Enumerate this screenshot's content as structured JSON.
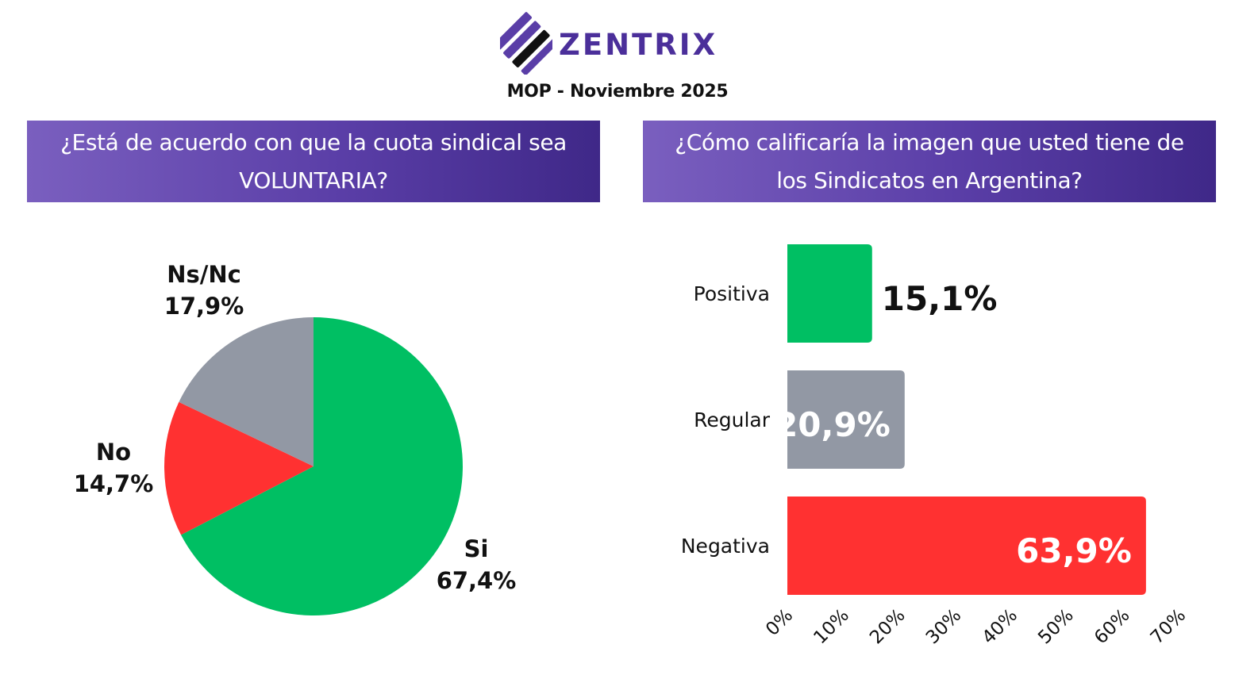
{
  "header": {
    "brand": "ZENTRIX",
    "subtitle": "MOP - Noviembre 2025"
  },
  "colors": {
    "brand_purple": "#4b2f9a",
    "green": "#00bf63",
    "gray": "#9298a4",
    "red": "#ff3131"
  },
  "chart_data": [
    {
      "type": "pie",
      "title": "¿Está de acuerdo con que la cuota sindical sea VOLUNTARIA?",
      "slices": [
        {
          "label": "Si",
          "value": 67.4,
          "value_label": "67,4%",
          "color": "#00bf63"
        },
        {
          "label": "No",
          "value": 14.7,
          "value_label": "14,7%",
          "color": "#ff3131"
        },
        {
          "label": "Ns/Nc",
          "value": 17.9,
          "value_label": "17,9%",
          "color": "#9298a4"
        }
      ]
    },
    {
      "type": "bar",
      "orientation": "horizontal",
      "title": "¿Cómo calificaría la imagen que usted tiene de los Sindicatos en Argentina?",
      "categories": [
        "Positiva",
        "Regular",
        "Negativa"
      ],
      "values": [
        15.1,
        20.9,
        63.9
      ],
      "value_labels": [
        "15,1%",
        "20,9%",
        "63,9%"
      ],
      "colors": [
        "#00bf63",
        "#9298a4",
        "#ff3131"
      ],
      "xlim": [
        0,
        70
      ],
      "xticks": [
        "0%",
        "10%",
        "20%",
        "30%",
        "40%",
        "50%",
        "60%",
        "70%"
      ],
      "grid": false
    }
  ]
}
